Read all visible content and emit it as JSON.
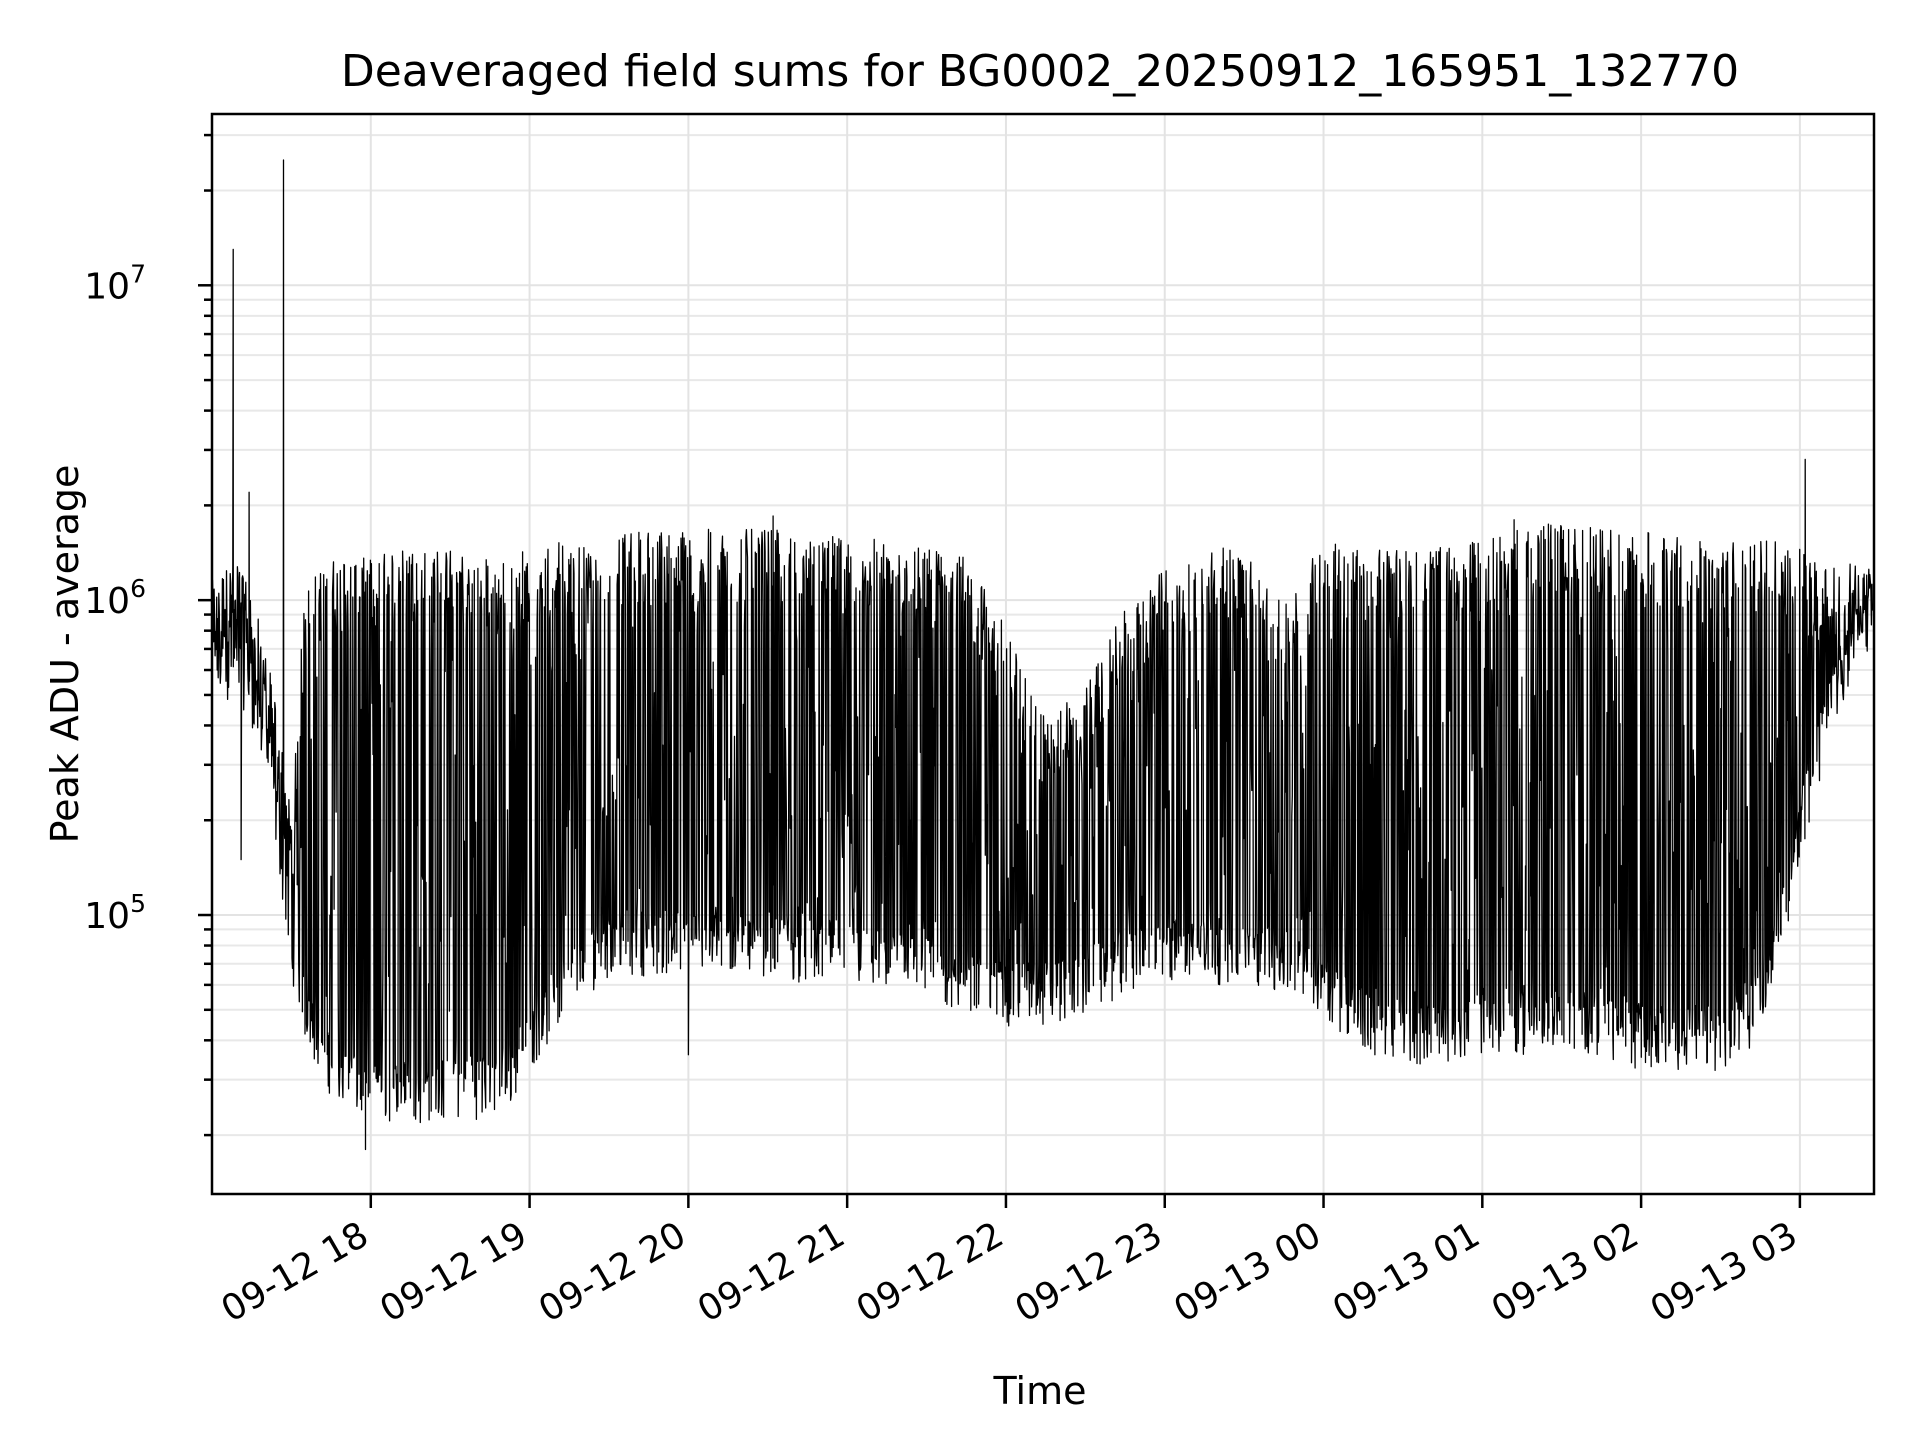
{
  "chart_data": {
    "type": "line",
    "title": "Deaveraged field sums for BG0002_20250912_165951_132770",
    "xlabel": "Time",
    "ylabel": "Peak ADU - average",
    "yscale": "log",
    "ylim": [
      13000,
      35000000
    ],
    "xlim": [
      "2025-09-12 17:00",
      "2025-09-13 03:28"
    ],
    "grid": true,
    "x_ticks": [
      {
        "value": "2025-09-12 18:00",
        "label": "09-12 18"
      },
      {
        "value": "2025-09-12 19:00",
        "label": "09-12 19"
      },
      {
        "value": "2025-09-12 20:00",
        "label": "09-12 20"
      },
      {
        "value": "2025-09-12 21:00",
        "label": "09-12 21"
      },
      {
        "value": "2025-09-12 22:00",
        "label": "09-12 22"
      },
      {
        "value": "2025-09-12 23:00",
        "label": "09-12 23"
      },
      {
        "value": "2025-09-13 00:00",
        "label": "09-13 00"
      },
      {
        "value": "2025-09-13 01:00",
        "label": "09-13 01"
      },
      {
        "value": "2025-09-13 02:00",
        "label": "09-13 02"
      },
      {
        "value": "2025-09-13 03:00",
        "label": "09-13 03"
      }
    ],
    "y_ticks": [
      {
        "value": 100000,
        "base": "10",
        "exp": "5"
      },
      {
        "value": 1000000,
        "base": "10",
        "exp": "6"
      },
      {
        "value": 10000000,
        "base": "10",
        "exp": "7"
      }
    ],
    "series_color": "#000000",
    "series": [
      {
        "x": [
          "2025-09-12 17:00",
          "2025-09-12 17:05",
          "2025-09-12 17:10",
          "2025-09-12 17:15",
          "2025-09-12 17:20",
          "2025-09-12 17:25",
          "2025-09-12 17:30",
          "2025-09-12 17:35",
          "2025-09-12 17:40",
          "2025-09-12 17:45",
          "2025-09-12 17:50",
          "2025-09-12 17:55",
          "2025-09-12 18:00",
          "2025-09-12 18:10",
          "2025-09-12 18:20",
          "2025-09-12 18:30",
          "2025-09-12 18:40",
          "2025-09-12 18:50",
          "2025-09-12 19:00",
          "2025-09-12 19:15",
          "2025-09-12 19:30",
          "2025-09-12 19:45",
          "2025-09-12 20:00",
          "2025-09-12 20:15",
          "2025-09-12 20:30",
          "2025-09-12 20:45",
          "2025-09-12 21:00",
          "2025-09-12 21:15",
          "2025-09-12 21:30",
          "2025-09-12 21:45",
          "2025-09-12 22:00",
          "2025-09-12 22:15",
          "2025-09-12 22:30",
          "2025-09-12 22:45",
          "2025-09-12 23:00",
          "2025-09-12 23:15",
          "2025-09-12 23:30",
          "2025-09-12 23:45",
          "2025-09-13 00:00",
          "2025-09-13 00:15",
          "2025-09-13 00:30",
          "2025-09-13 00:45",
          "2025-09-13 01:00",
          "2025-09-13 01:15",
          "2025-09-13 01:30",
          "2025-09-13 01:45",
          "2025-09-13 02:00",
          "2025-09-13 02:15",
          "2025-09-13 02:30",
          "2025-09-13 02:40",
          "2025-09-13 02:50",
          "2025-09-13 03:00",
          "2025-09-13 03:10",
          "2025-09-13 03:20",
          "2025-09-13 03:28"
        ],
        "y_low": [
          600000,
          550000,
          600000,
          500000,
          350000,
          180000,
          80000,
          50000,
          40000,
          33000,
          30000,
          28000,
          28000,
          27000,
          27000,
          28000,
          28000,
          28000,
          40000,
          60000,
          80000,
          80000,
          80000,
          80000,
          80000,
          75000,
          75000,
          70000,
          65000,
          60000,
          55000,
          55000,
          60000,
          70000,
          75000,
          75000,
          75000,
          70000,
          60000,
          45000,
          42000,
          42000,
          45000,
          45000,
          45000,
          45000,
          40000,
          40000,
          40000,
          45000,
          70000,
          180000,
          400000,
          700000,
          900000
        ],
        "y_high": [
          1100000,
          1200000,
          1300000,
          1000000,
          700000,
          400000,
          200000,
          1000000,
          1200000,
          1300000,
          1300000,
          1300000,
          1300000,
          1400000,
          1400000,
          1400000,
          1300000,
          1300000,
          1400000,
          1500000,
          1550000,
          1600000,
          1600000,
          1600000,
          1600000,
          1550000,
          1500000,
          1500000,
          1400000,
          1300000,
          800000,
          400000,
          500000,
          900000,
          1200000,
          1400000,
          1400000,
          900000,
          1500000,
          1400000,
          1400000,
          1400000,
          1500000,
          1600000,
          1700000,
          1600000,
          1600000,
          1500000,
          1500000,
          1500000,
          1500000,
          1400000,
          1200000,
          1300000,
          1200000
        ],
        "spikes": [
          {
            "x": "2025-09-12 17:08",
            "y": 13000000
          },
          {
            "x": "2025-09-12 17:11",
            "y": 150000
          },
          {
            "x": "2025-09-12 17:14",
            "y": 2200000
          },
          {
            "x": "2025-09-12 17:27",
            "y": 25000000
          },
          {
            "x": "2025-09-12 17:58",
            "y": 18000
          },
          {
            "x": "2025-09-12 20:00",
            "y": 36000
          },
          {
            "x": "2025-09-12 20:32",
            "y": 1850000
          },
          {
            "x": "2025-09-13 01:12",
            "y": 1800000
          },
          {
            "x": "2025-09-13 03:02",
            "y": 2800000
          }
        ]
      }
    ]
  }
}
